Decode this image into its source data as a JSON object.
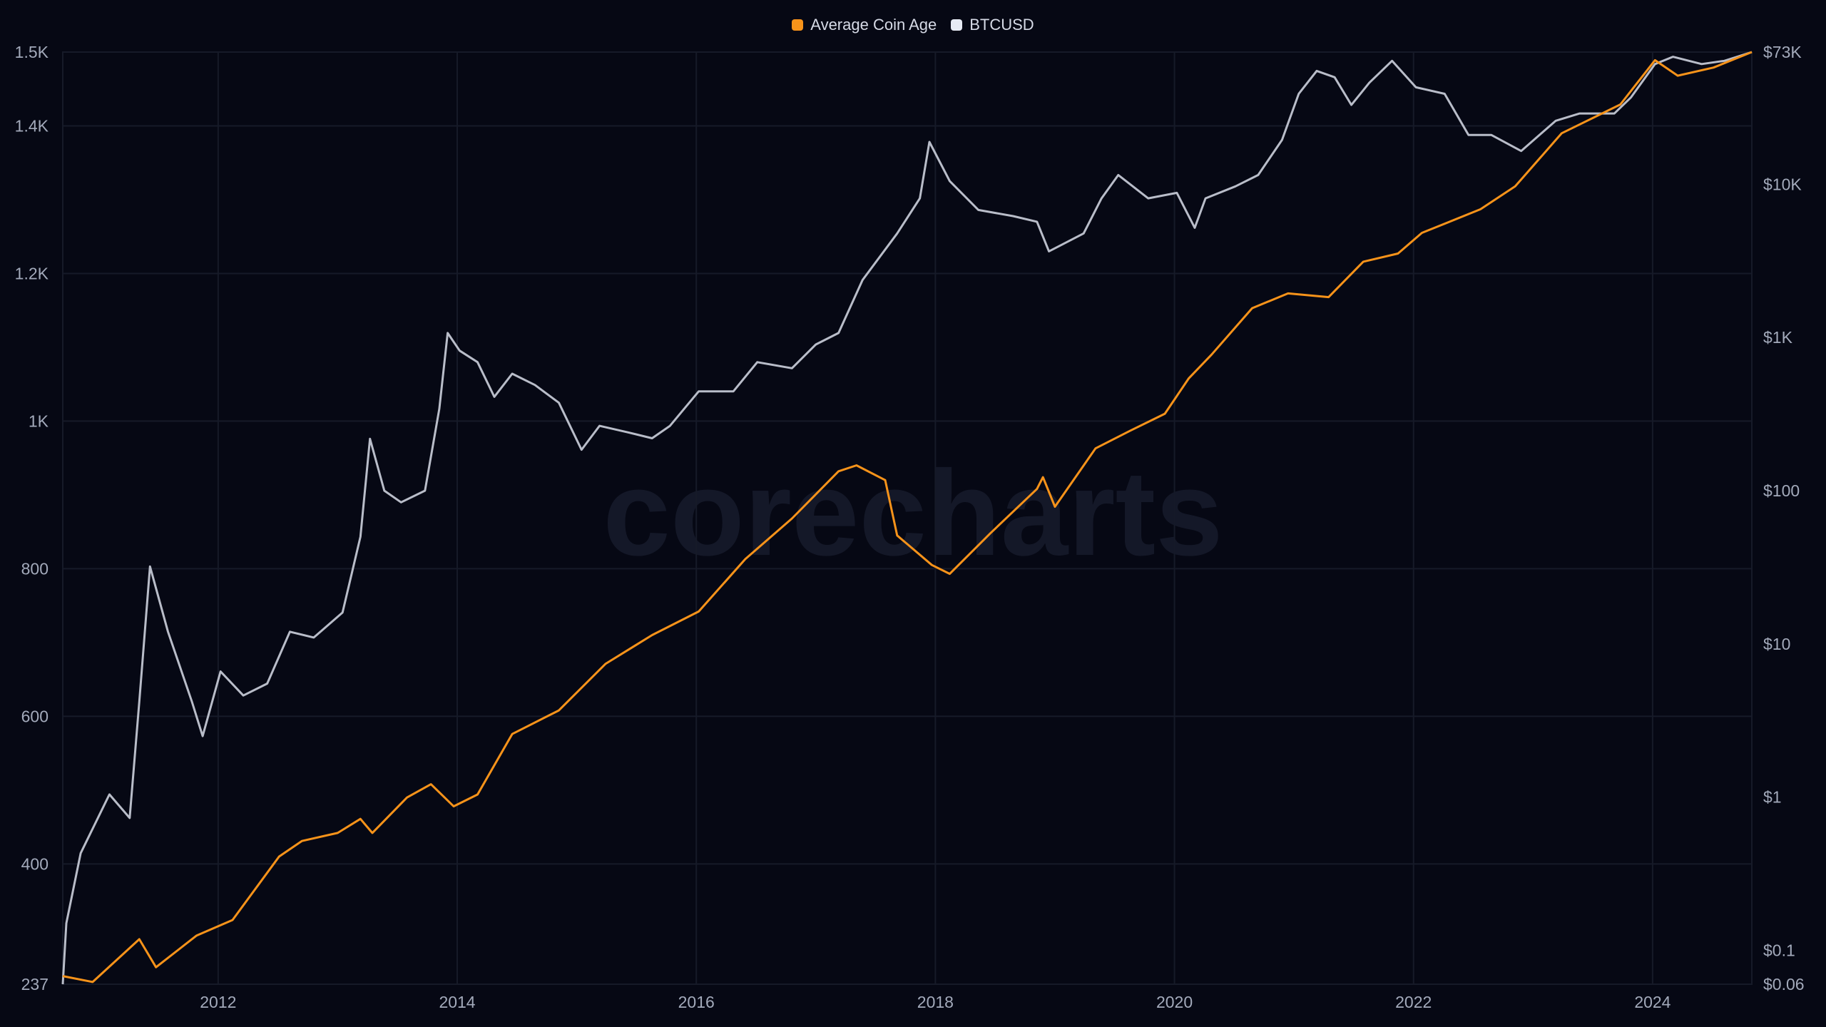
{
  "chart_data": {
    "type": "line",
    "title": "",
    "watermark": "corecharts",
    "legend_position": "top-center",
    "grid": true,
    "x": {
      "label": "",
      "range": [
        2010.7,
        2024.83
      ],
      "ticks": [
        2012,
        2014,
        2016,
        2018,
        2020,
        2022,
        2024
      ],
      "tick_labels": [
        "2012",
        "2014",
        "2016",
        "2018",
        "2020",
        "2022",
        "2024"
      ]
    },
    "y_left": {
      "label": "",
      "scale": "linear",
      "range": [
        237,
        1500
      ],
      "ticks": [
        237,
        400,
        600,
        800,
        1000,
        1200,
        1400,
        1500
      ],
      "tick_labels": [
        "237",
        "400",
        "600",
        "800",
        "1K",
        "1.2K",
        "1.4K",
        "1.5K"
      ]
    },
    "y_right": {
      "label": "",
      "scale": "log",
      "range": [
        0.06,
        73000
      ],
      "ticks": [
        0.06,
        0.1,
        1,
        10,
        100,
        1000,
        10000,
        73000
      ],
      "tick_labels": [
        "$0.06",
        "$0.1",
        "$1",
        "$10",
        "$100",
        "$1K",
        "$10K",
        "$73K"
      ]
    },
    "series": [
      {
        "name": "Average Coin Age",
        "axis": "left",
        "color": "#f7931a",
        "x": [
          2010.7,
          2010.95,
          2011.34,
          2011.48,
          2011.82,
          2012.12,
          2012.51,
          2012.7,
          2013.0,
          2013.19,
          2013.29,
          2013.58,
          2013.78,
          2013.97,
          2014.17,
          2014.46,
          2014.85,
          2015.24,
          2015.63,
          2016.02,
          2016.41,
          2016.8,
          2017.19,
          2017.34,
          2017.58,
          2017.68,
          2017.97,
          2018.12,
          2018.46,
          2018.85,
          2018.9,
          2019.0,
          2019.34,
          2019.63,
          2019.92,
          2020.12,
          2020.31,
          2020.65,
          2020.95,
          2021.29,
          2021.58,
          2021.87,
          2022.07,
          2022.56,
          2022.85,
          2023.24,
          2023.73,
          2024.02,
          2024.21,
          2024.51,
          2024.83
        ],
        "values": [
          248,
          240,
          298,
          260,
          303,
          324,
          410,
          431,
          442,
          461,
          442,
          490,
          508,
          478,
          494,
          576,
          608,
          671,
          710,
          742,
          813,
          868,
          932,
          940,
          920,
          845,
          805,
          793,
          848,
          908,
          924,
          884,
          963,
          987,
          1010,
          1058,
          1090,
          1153,
          1173,
          1168,
          1216,
          1227,
          1255,
          1287,
          1318,
          1390,
          1429,
          1489,
          1468,
          1479,
          1500
        ]
      },
      {
        "name": "BTCUSD",
        "axis": "right",
        "color": "#b9bdc9",
        "x": [
          2010.7,
          2010.73,
          2010.85,
          2011.09,
          2011.26,
          2011.34,
          2011.43,
          2011.58,
          2011.78,
          2011.87,
          2012.02,
          2012.21,
          2012.41,
          2012.6,
          2012.8,
          2013.04,
          2013.19,
          2013.27,
          2013.39,
          2013.53,
          2013.73,
          2013.85,
          2013.92,
          2014.02,
          2014.17,
          2014.31,
          2014.46,
          2014.65,
          2014.85,
          2015.04,
          2015.19,
          2015.43,
          2015.63,
          2015.78,
          2016.02,
          2016.31,
          2016.51,
          2016.8,
          2017.0,
          2017.19,
          2017.39,
          2017.68,
          2017.87,
          2017.95,
          2018.12,
          2018.36,
          2018.65,
          2018.85,
          2018.95,
          2019.24,
          2019.39,
          2019.53,
          2019.78,
          2020.02,
          2020.17,
          2020.26,
          2020.51,
          2020.7,
          2020.9,
          2021.04,
          2021.19,
          2021.34,
          2021.48,
          2021.63,
          2021.82,
          2022.02,
          2022.26,
          2022.46,
          2022.65,
          2022.9,
          2023.19,
          2023.39,
          2023.68,
          2023.82,
          2024.02,
          2024.17,
          2024.41,
          2024.6,
          2024.83
        ],
        "values": [
          0.06,
          0.15,
          0.43,
          1.04,
          0.73,
          4.2,
          32,
          12,
          4.2,
          2.5,
          6.6,
          4.6,
          5.5,
          12,
          11,
          16,
          50,
          218,
          100,
          84,
          100,
          342,
          1070,
          820,
          690,
          410,
          580,
          490,
          375,
          185,
          265,
          240,
          220,
          265,
          445,
          445,
          690,
          630,
          900,
          1070,
          2370,
          4780,
          8100,
          18900,
          10500,
          6800,
          6200,
          5700,
          3650,
          4780,
          8100,
          11500,
          8100,
          8800,
          5200,
          8100,
          9700,
          11500,
          19500,
          39000,
          55000,
          50000,
          33000,
          46000,
          64000,
          43000,
          39000,
          21000,
          21000,
          16500,
          26000,
          29000,
          29000,
          37000,
          61000,
          68000,
          61000,
          64000,
          73000
        ]
      }
    ]
  }
}
